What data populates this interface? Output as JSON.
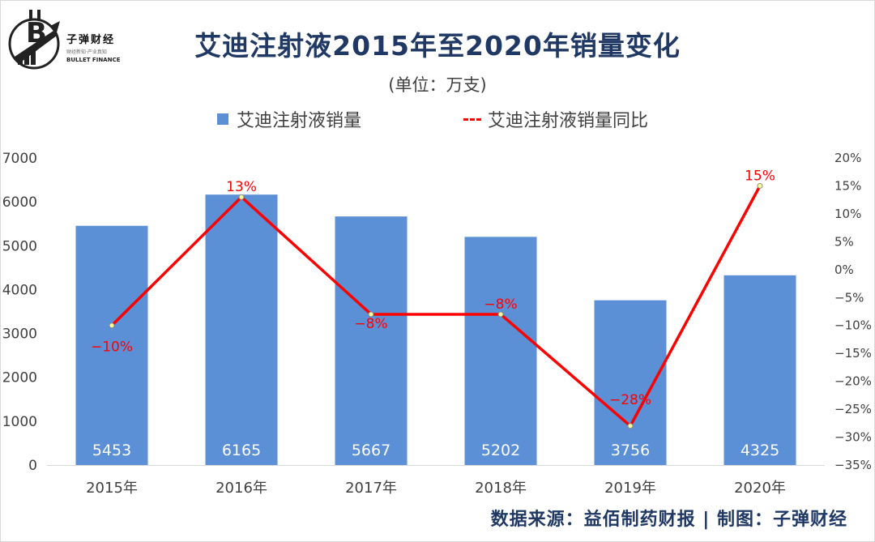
{
  "title": "艾迪注射液2015年至2020年销量变化",
  "subtitle": "(单位：万支)",
  "brand": {
    "name_cn": "子弹财经",
    "tagline": "财经新知·产业真知",
    "name_en": "BULLET FINANCE"
  },
  "source": "数据来源：益佰制药财报  |  制图：子弹财经",
  "colors": {
    "bar": "#5b8fd6",
    "line": "#ff0000",
    "title": "#1f3864"
  },
  "chart_data": {
    "type": "bar",
    "categories": [
      "2015年",
      "2016年",
      "2017年",
      "2018年",
      "2019年",
      "2020年"
    ],
    "series": [
      {
        "name": "艾迪注射液销量",
        "type": "bar",
        "axis": "left",
        "values": [
          5453,
          6165,
          5667,
          5202,
          3756,
          4325
        ],
        "labels": [
          "5453",
          "6165",
          "5667",
          "5202",
          "3756",
          "4325"
        ]
      },
      {
        "name": "艾迪注射液销量同比",
        "type": "line",
        "axis": "right",
        "values": [
          -10,
          13,
          -8,
          -8,
          -28,
          15
        ],
        "labels": [
          "−10%",
          "13%",
          "−8%",
          "−8%",
          "−28%",
          "15%"
        ]
      }
    ],
    "y_left": {
      "range": [
        0,
        7000
      ],
      "ticks": [
        "0",
        "1000",
        "2000",
        "3000",
        "4000",
        "5000",
        "6000",
        "7000"
      ]
    },
    "y_right": {
      "range": [
        -35,
        20
      ],
      "ticks": [
        "20%",
        "15%",
        "10%",
        "5%",
        "0%",
        "−5%",
        "−10%",
        "−15%",
        "−20%",
        "−25%",
        "−30%",
        "−35%"
      ]
    },
    "grid": false,
    "legend": "top-center"
  }
}
